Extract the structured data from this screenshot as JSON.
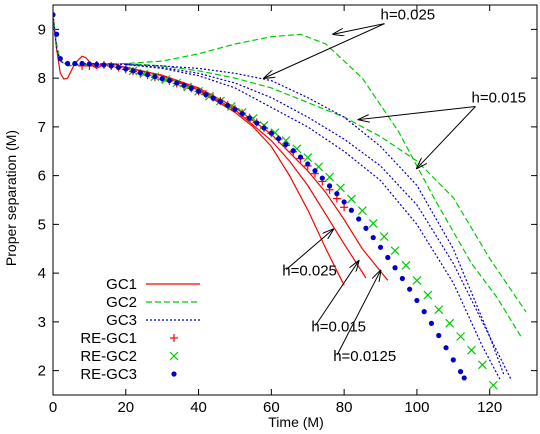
{
  "chart_data": {
    "type": "line",
    "xlabel": "Time (M)",
    "ylabel": "Proper separation (M)",
    "xlim": [
      0,
      133
    ],
    "ylim": [
      1.5,
      9.5
    ],
    "xticks": [
      "0",
      "20",
      "40",
      "60",
      "80",
      "100",
      "120"
    ],
    "yticks": [
      "2",
      "3",
      "4",
      "5",
      "6",
      "7",
      "8",
      "9"
    ],
    "grid": false,
    "legend_position": "lower-left",
    "colors": {
      "red": "#ff0000",
      "green": "#00cc00",
      "blue": "#0000cc"
    },
    "series": [
      {
        "name": "GC1",
        "style": "solid",
        "color": "#ff0000",
        "points": [
          [
            0,
            9.3
          ],
          [
            1,
            8.6
          ],
          [
            2,
            8.1
          ],
          [
            3,
            7.98
          ],
          [
            4,
            8.0
          ],
          [
            6,
            8.3
          ],
          [
            8,
            8.45
          ],
          [
            9,
            8.42
          ],
          [
            11,
            8.25
          ],
          [
            12,
            8.2
          ],
          [
            14,
            8.28
          ],
          [
            16,
            8.3
          ],
          [
            20,
            8.22
          ],
          [
            30,
            8.05
          ],
          [
            40,
            7.75
          ],
          [
            50,
            7.3
          ],
          [
            55,
            7.0
          ],
          [
            60,
            6.6
          ],
          [
            65,
            6.0
          ],
          [
            70,
            5.3
          ],
          [
            75,
            4.5
          ],
          [
            80,
            3.75
          ]
        ]
      },
      {
        "name": "GC1",
        "style": "solid",
        "color": "#ff0000",
        "points": [
          [
            20,
            8.22
          ],
          [
            30,
            8.05
          ],
          [
            40,
            7.77
          ],
          [
            50,
            7.35
          ],
          [
            60,
            6.72
          ],
          [
            65,
            6.3
          ],
          [
            70,
            5.8
          ],
          [
            75,
            5.2
          ],
          [
            80,
            4.6
          ],
          [
            86,
            3.9
          ]
        ]
      },
      {
        "name": "GC1",
        "style": "solid",
        "color": "#ff0000",
        "points": [
          [
            20,
            8.22
          ],
          [
            30,
            8.06
          ],
          [
            40,
            7.8
          ],
          [
            50,
            7.4
          ],
          [
            60,
            6.85
          ],
          [
            70,
            6.1
          ],
          [
            75,
            5.65
          ],
          [
            80,
            5.1
          ],
          [
            85,
            4.5
          ],
          [
            92,
            3.85
          ]
        ]
      },
      {
        "name": "GC2",
        "style": "dashed",
        "color": "#00cc00",
        "points": [
          [
            0,
            9.3
          ],
          [
            1,
            8.7
          ],
          [
            2,
            8.35
          ],
          [
            4,
            8.25
          ],
          [
            10,
            8.28
          ],
          [
            20,
            8.3
          ],
          [
            30,
            8.35
          ],
          [
            40,
            8.5
          ],
          [
            50,
            8.7
          ],
          [
            60,
            8.85
          ],
          [
            68,
            8.9
          ],
          [
            75,
            8.7
          ],
          [
            85,
            8.0
          ],
          [
            95,
            6.9
          ],
          [
            105,
            5.5
          ],
          [
            115,
            4.2
          ],
          [
            122,
            3.5
          ],
          [
            129,
            2.65
          ]
        ]
      },
      {
        "name": "GC2",
        "style": "dashed",
        "color": "#00cc00",
        "points": [
          [
            20,
            8.3
          ],
          [
            30,
            8.25
          ],
          [
            40,
            8.15
          ],
          [
            50,
            8.0
          ],
          [
            60,
            7.8
          ],
          [
            70,
            7.5
          ],
          [
            80,
            7.2
          ],
          [
            90,
            6.8
          ],
          [
            100,
            6.3
          ],
          [
            110,
            5.55
          ],
          [
            120,
            4.3
          ],
          [
            130,
            3.2
          ]
        ]
      },
      {
        "name": "GC3",
        "style": "dotted",
        "color": "#0000cc",
        "points": [
          [
            0,
            9.3
          ],
          [
            1,
            8.6
          ],
          [
            2,
            8.35
          ],
          [
            4,
            8.27
          ],
          [
            10,
            8.3
          ],
          [
            20,
            8.28
          ],
          [
            30,
            8.25
          ],
          [
            40,
            8.2
          ],
          [
            50,
            8.1
          ],
          [
            60,
            7.95
          ],
          [
            70,
            7.6
          ],
          [
            80,
            7.2
          ],
          [
            90,
            6.6
          ],
          [
            100,
            5.8
          ],
          [
            110,
            4.5
          ],
          [
            120,
            2.7
          ],
          [
            124,
            1.9
          ]
        ]
      },
      {
        "name": "GC3",
        "style": "dotted",
        "color": "#0000cc",
        "points": [
          [
            20,
            8.28
          ],
          [
            30,
            8.2
          ],
          [
            40,
            8.05
          ],
          [
            50,
            7.8
          ],
          [
            60,
            7.4
          ],
          [
            70,
            7.0
          ],
          [
            80,
            6.5
          ],
          [
            90,
            5.9
          ],
          [
            100,
            5.0
          ],
          [
            110,
            3.8
          ],
          [
            118,
            2.5
          ],
          [
            123,
            1.8
          ]
        ]
      },
      {
        "name": "GC3",
        "style": "dotted",
        "color": "#0000cc",
        "points": [
          [
            20,
            8.28
          ],
          [
            30,
            8.22
          ],
          [
            40,
            8.1
          ],
          [
            50,
            7.9
          ],
          [
            60,
            7.6
          ],
          [
            70,
            7.2
          ],
          [
            80,
            6.75
          ],
          [
            90,
            6.2
          ],
          [
            100,
            5.4
          ],
          [
            110,
            4.2
          ],
          [
            118,
            3.0
          ],
          [
            126,
            1.8
          ]
        ]
      },
      {
        "name": "RE-GC1",
        "style": "plus",
        "color": "#ff0000",
        "points": [
          [
            8,
            8.25
          ],
          [
            10,
            8.25
          ],
          [
            12,
            8.27
          ],
          [
            14,
            8.27
          ],
          [
            16,
            8.25
          ],
          [
            18,
            8.22
          ],
          [
            20,
            8.18
          ],
          [
            22,
            8.14
          ],
          [
            24,
            8.1
          ],
          [
            26,
            8.06
          ],
          [
            28,
            8.02
          ],
          [
            30,
            7.98
          ],
          [
            32,
            7.94
          ],
          [
            34,
            7.89
          ],
          [
            36,
            7.84
          ],
          [
            38,
            7.79
          ],
          [
            40,
            7.73
          ],
          [
            42,
            7.67
          ],
          [
            44,
            7.6
          ],
          [
            46,
            7.53
          ],
          [
            48,
            7.45
          ],
          [
            50,
            7.37
          ],
          [
            52,
            7.28
          ],
          [
            54,
            7.19
          ],
          [
            56,
            7.09
          ],
          [
            58,
            6.98
          ],
          [
            60,
            6.87
          ],
          [
            62,
            6.75
          ],
          [
            64,
            6.62
          ],
          [
            66,
            6.49
          ],
          [
            68,
            6.35
          ],
          [
            70,
            6.2
          ],
          [
            72,
            6.04
          ],
          [
            74,
            5.88
          ],
          [
            76,
            5.71
          ],
          [
            78,
            5.53
          ],
          [
            80,
            5.35
          ]
        ]
      },
      {
        "name": "RE-GC2",
        "style": "cross",
        "color": "#00cc00",
        "points": [
          [
            22,
            8.15
          ],
          [
            25,
            8.09
          ],
          [
            28,
            8.03
          ],
          [
            31,
            7.97
          ],
          [
            34,
            7.9
          ],
          [
            37,
            7.82
          ],
          [
            40,
            7.73
          ],
          [
            43,
            7.63
          ],
          [
            46,
            7.53
          ],
          [
            49,
            7.42
          ],
          [
            52,
            7.3
          ],
          [
            55,
            7.17
          ],
          [
            58,
            7.03
          ],
          [
            61,
            6.88
          ],
          [
            64,
            6.72
          ],
          [
            67,
            6.55
          ],
          [
            70,
            6.37
          ],
          [
            73,
            6.18
          ],
          [
            76,
            5.97
          ],
          [
            79,
            5.75
          ],
          [
            82,
            5.52
          ],
          [
            85,
            5.28
          ],
          [
            88,
            5.02
          ],
          [
            91,
            4.75
          ],
          [
            94,
            4.46
          ],
          [
            97,
            4.16
          ],
          [
            100,
            3.85
          ],
          [
            103,
            3.55
          ],
          [
            106,
            3.25
          ],
          [
            109,
            2.97
          ],
          [
            112,
            2.7
          ],
          [
            115,
            2.42
          ],
          [
            118,
            2.12
          ],
          [
            121,
            1.7
          ]
        ]
      },
      {
        "name": "RE-GC3",
        "style": "dot",
        "color": "#0000cc",
        "points": [
          [
            0,
            9.3
          ],
          [
            1,
            8.9
          ],
          [
            2,
            8.4
          ],
          [
            4,
            8.3
          ],
          [
            6,
            8.3
          ],
          [
            8,
            8.3
          ],
          [
            10,
            8.29
          ],
          [
            12,
            8.28
          ],
          [
            14,
            8.27
          ],
          [
            16,
            8.25
          ],
          [
            18,
            8.22
          ],
          [
            20,
            8.19
          ],
          [
            22,
            8.15
          ],
          [
            24,
            8.11
          ],
          [
            26,
            8.07
          ],
          [
            28,
            8.03
          ],
          [
            30,
            7.99
          ],
          [
            32,
            7.95
          ],
          [
            34,
            7.9
          ],
          [
            36,
            7.85
          ],
          [
            38,
            7.79
          ],
          [
            40,
            7.73
          ],
          [
            42,
            7.66
          ],
          [
            44,
            7.59
          ],
          [
            46,
            7.52
          ],
          [
            48,
            7.44
          ],
          [
            50,
            7.36
          ],
          [
            52,
            7.27
          ],
          [
            54,
            7.18
          ],
          [
            56,
            7.08
          ],
          [
            58,
            6.98
          ],
          [
            60,
            6.87
          ],
          [
            62,
            6.76
          ],
          [
            64,
            6.64
          ],
          [
            66,
            6.51
          ],
          [
            68,
            6.38
          ],
          [
            70,
            6.24
          ],
          [
            72,
            6.1
          ],
          [
            74,
            5.95
          ],
          [
            76,
            5.79
          ],
          [
            78,
            5.63
          ],
          [
            80,
            5.46
          ],
          [
            82,
            5.29
          ],
          [
            84,
            5.11
          ],
          [
            86,
            4.92
          ],
          [
            88,
            4.73
          ],
          [
            90,
            4.53
          ],
          [
            92,
            4.32
          ],
          [
            94,
            4.11
          ],
          [
            96,
            3.89
          ],
          [
            98,
            3.67
          ],
          [
            100,
            3.44
          ],
          [
            102,
            3.21
          ],
          [
            104,
            2.97
          ],
          [
            106,
            2.72
          ],
          [
            108,
            2.47
          ],
          [
            110,
            2.22
          ],
          [
            112,
            1.98
          ],
          [
            113,
            1.85
          ]
        ]
      }
    ],
    "legend": [
      {
        "name": "GC1",
        "style": "solid",
        "color": "#ff0000"
      },
      {
        "name": "GC2",
        "style": "dashed",
        "color": "#00cc00"
      },
      {
        "name": "GC3",
        "style": "dotted",
        "color": "#0000cc"
      },
      {
        "name": "RE-GC1",
        "style": "plus",
        "color": "#ff0000"
      },
      {
        "name": "RE-GC2",
        "style": "cross",
        "color": "#00cc00"
      },
      {
        "name": "RE-GC3",
        "style": "dot",
        "color": "#0000cc"
      }
    ],
    "annotations": [
      {
        "text": "h=0.025",
        "at": [
          90,
          9.2
        ],
        "targets": [
          [
            58,
            8.0
          ],
          [
            77,
            8.9
          ]
        ]
      },
      {
        "text": "h=0.015",
        "at": [
          115,
          7.5
        ],
        "targets": [
          [
            84,
            7.15
          ],
          [
            100,
            6.15
          ]
        ]
      },
      {
        "text": "h=0.025",
        "at": [
          63,
          3.95
        ],
        "targets": [
          [
            77,
            4.9
          ]
        ]
      },
      {
        "text": "h=0.015",
        "at": [
          71,
          2.8
        ],
        "targets": [
          [
            84,
            4.25
          ]
        ]
      },
      {
        "text": "h=0.0125",
        "at": [
          77,
          2.2
        ],
        "targets": [
          [
            90,
            4.05
          ]
        ]
      }
    ]
  }
}
